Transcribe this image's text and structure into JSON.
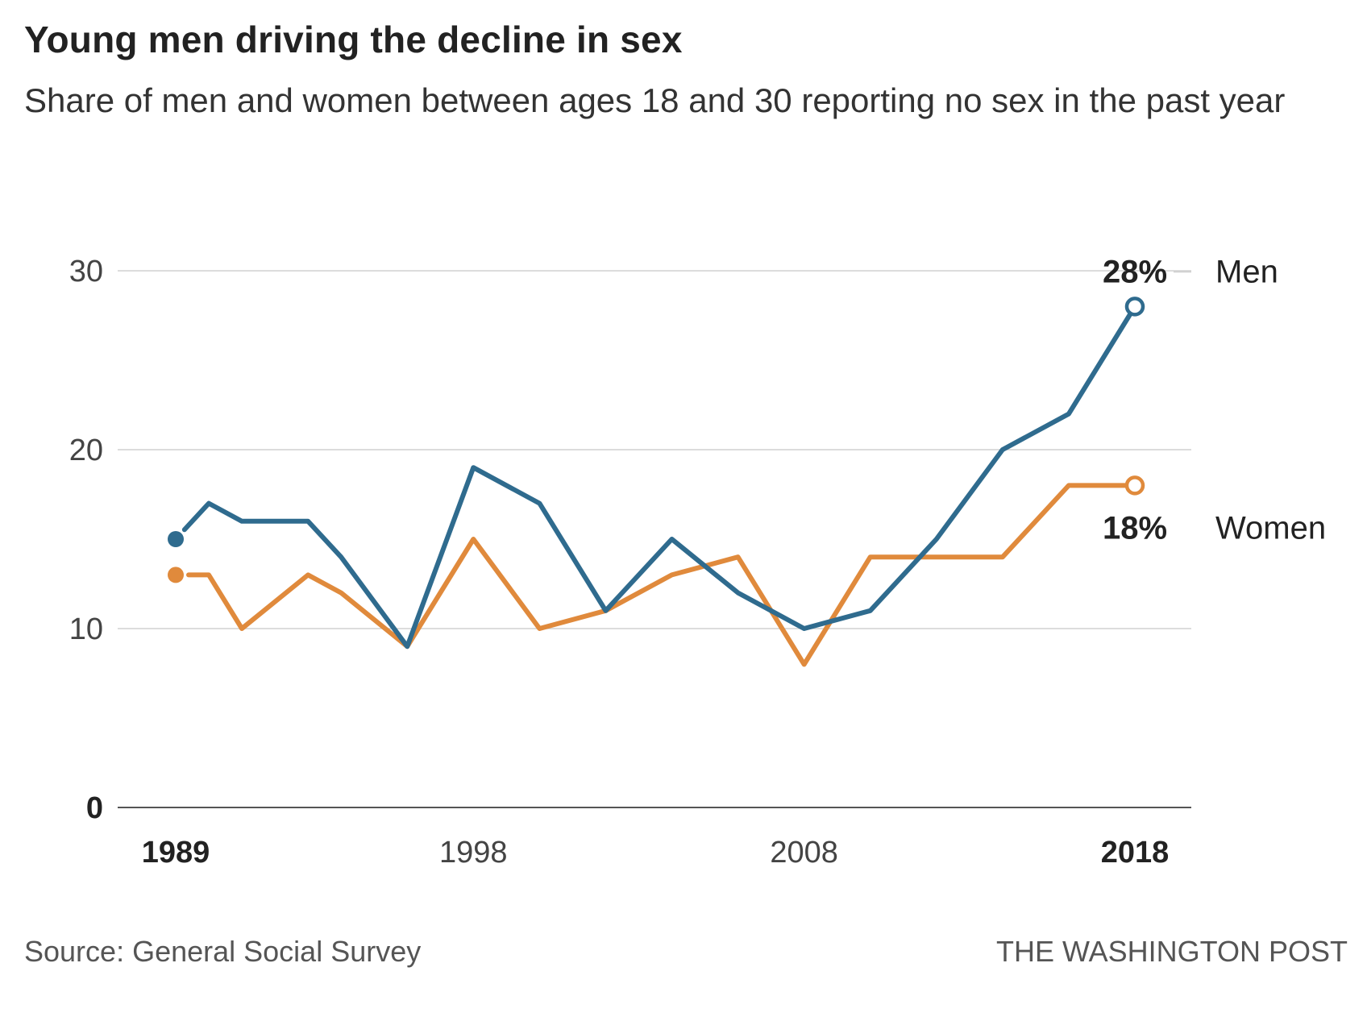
{
  "title": "Young men driving the decline in sex",
  "subtitle": "Share of men and women between ages 18 and 30 reporting no sex in the past year",
  "source": "Source: General Social Survey",
  "credit": "THE WASHINGTON POST",
  "chart_data": {
    "type": "line",
    "title": "Young men driving the decline in sex",
    "subtitle": "Share of men and women between ages 18 and 30 reporting no sex in the past year",
    "xlabel": "",
    "ylabel": "",
    "xlim": [
      1989,
      2018
    ],
    "ylim": [
      0,
      30
    ],
    "grid": true,
    "x_ticks": [
      {
        "value": 1989,
        "label": "1989",
        "bold": true
      },
      {
        "value": 1998,
        "label": "1998",
        "bold": false
      },
      {
        "value": 2008,
        "label": "2008",
        "bold": false
      },
      {
        "value": 2018,
        "label": "2018",
        "bold": true
      }
    ],
    "y_ticks": [
      {
        "value": 0,
        "label": "0",
        "bold": true
      },
      {
        "value": 10,
        "label": "10",
        "bold": false
      },
      {
        "value": 20,
        "label": "20",
        "bold": false
      },
      {
        "value": 30,
        "label": "30",
        "bold": false
      }
    ],
    "series": [
      {
        "name": "Men",
        "color": "#2f6b8e",
        "end_label": "28%",
        "x": [
          1989,
          1990,
          1991,
          1993,
          1994,
          1996,
          1998,
          2000,
          2002,
          2004,
          2006,
          2008,
          2010,
          2012,
          2014,
          2016,
          2018
        ],
        "values": [
          15,
          17,
          16,
          16,
          14,
          9,
          19,
          17,
          11,
          15,
          12,
          10,
          11,
          15,
          20,
          22,
          28
        ]
      },
      {
        "name": "Women",
        "color": "#e08a3c",
        "end_label": "18%",
        "x": [
          1989,
          1990,
          1991,
          1993,
          1994,
          1996,
          1998,
          2000,
          2002,
          2004,
          2006,
          2008,
          2010,
          2012,
          2014,
          2016,
          2018
        ],
        "values": [
          13,
          13,
          10,
          13,
          12,
          9,
          15,
          10,
          11,
          13,
          14,
          8,
          14,
          14,
          14,
          18,
          18
        ]
      }
    ]
  }
}
